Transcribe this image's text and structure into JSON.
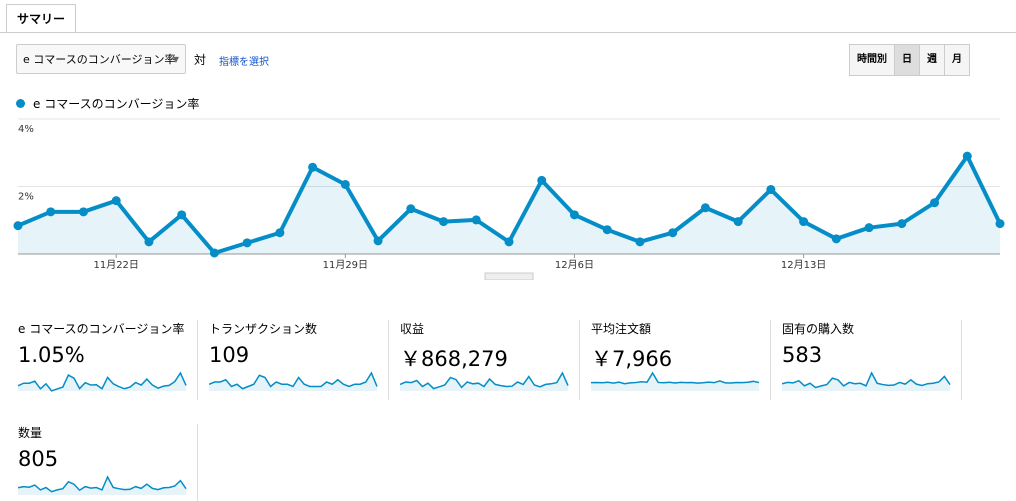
{
  "tab": "サマリー",
  "metric_selector": "e コマースのコンバージョン率",
  "versus": "対",
  "select_metric": "指標を選択",
  "granularity": {
    "options": [
      "時間別",
      "日",
      "週",
      "月"
    ],
    "selected": 1
  },
  "chart_data": {
    "type": "line",
    "categories": [
      null,
      null,
      null,
      "11月22日",
      null,
      null,
      null,
      null,
      null,
      null,
      "11月29日",
      null,
      null,
      null,
      null,
      null,
      null,
      "12月6日",
      null,
      null,
      null,
      null,
      null,
      null,
      "12月13日",
      null,
      null,
      null,
      null,
      null,
      null
    ],
    "series": [
      {
        "name": "e コマースのコンバージョン率",
        "color": "#058dc7",
        "values": [
          0.84,
          1.25,
          1.25,
          1.58,
          0.36,
          1.16,
          0.03,
          0.33,
          0.63,
          2.57,
          2.06,
          0.39,
          1.34,
          0.96,
          1.01,
          0.36,
          2.18,
          1.16,
          0.72,
          0.36,
          0.63,
          1.37,
          0.96,
          1.91,
          0.96,
          0.45,
          0.78,
          0.9,
          1.52,
          2.9,
          0.9
        ]
      }
    ],
    "ylim": [
      0,
      4
    ],
    "yticks": [
      {
        "value": 2,
        "label": "2%"
      },
      {
        "value": 4,
        "label": "4%"
      }
    ],
    "grid": true
  },
  "metrics": [
    {
      "label": "e コマースのコンバージョン率",
      "value": "1.05%",
      "spark": [
        0.84,
        1.25,
        1.25,
        1.58,
        0.36,
        1.16,
        0.03,
        0.33,
        0.63,
        2.57,
        2.06,
        0.39,
        1.34,
        0.96,
        1.01,
        0.36,
        2.18,
        1.16,
        0.72,
        0.36,
        0.63,
        1.37,
        0.96,
        1.91,
        0.96,
        0.45,
        0.78,
        0.9,
        1.52,
        2.9,
        0.9
      ]
    },
    {
      "label": "トランザクション数",
      "value": "109",
      "spark": [
        3,
        4,
        4,
        5,
        2,
        3,
        1,
        2,
        3,
        7,
        6,
        2,
        4,
        3,
        3,
        2,
        6,
        3,
        2,
        2,
        2,
        4,
        3,
        5,
        3,
        2,
        3,
        3,
        4,
        8,
        2
      ]
    },
    {
      "label": "収益",
      "value": "￥868,279",
      "spark": [
        22000,
        30000,
        28000,
        35000,
        15000,
        26000,
        8000,
        14000,
        20000,
        45000,
        38000,
        12000,
        30000,
        24000,
        26000,
        15000,
        40000,
        22000,
        18000,
        15000,
        16000,
        30000,
        22000,
        48000,
        20000,
        14000,
        22000,
        24000,
        28000,
        60000,
        18000
      ]
    },
    {
      "label": "平均注文額",
      "value": "￥7,966",
      "spark": [
        7400,
        7600,
        7300,
        7800,
        7000,
        7900,
        6500,
        7200,
        7500,
        8200,
        7800,
        16000,
        7600,
        7300,
        7800,
        7100,
        7700,
        7400,
        7600,
        7000,
        7300,
        7900,
        7400,
        9000,
        7200,
        7100,
        7600,
        7400,
        7800,
        8600,
        7500
      ]
    },
    {
      "label": "固有の購入数",
      "value": "583",
      "spark": [
        17,
        20,
        19,
        24,
        12,
        18,
        8,
        12,
        15,
        30,
        26,
        12,
        20,
        17,
        18,
        12,
        42,
        18,
        15,
        13,
        14,
        20,
        16,
        26,
        16,
        13,
        17,
        18,
        21,
        34,
        15
      ]
    },
    {
      "label": "数量",
      "value": "805",
      "spark": [
        24,
        28,
        26,
        33,
        17,
        25,
        11,
        17,
        21,
        44,
        36,
        16,
        28,
        23,
        25,
        17,
        60,
        25,
        21,
        18,
        19,
        28,
        22,
        36,
        22,
        18,
        24,
        25,
        30,
        48,
        21
      ]
    }
  ]
}
